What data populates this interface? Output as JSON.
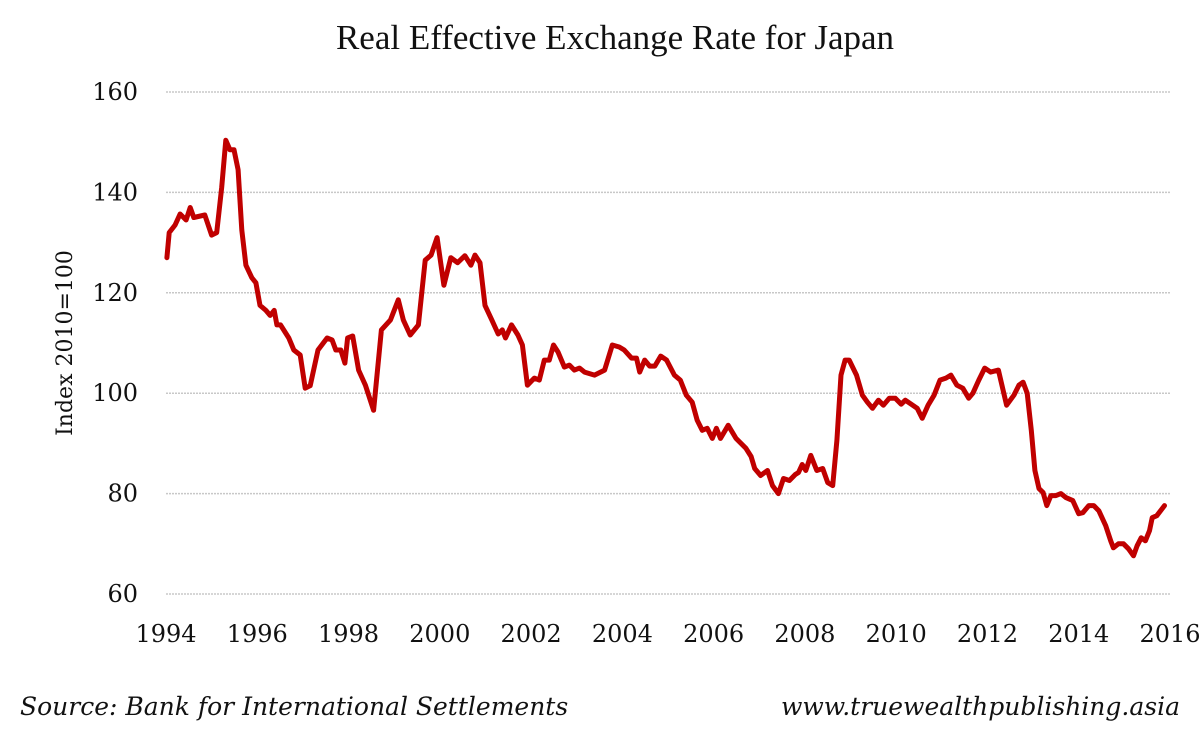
{
  "chart_data": {
    "type": "line",
    "title": "Real Effective Exchange Rate for Japan",
    "xlabel": "",
    "ylabel": "Index 2010=100",
    "xlim": [
      1994,
      2016
    ],
    "ylim": [
      60,
      160
    ],
    "grid": true,
    "yticks": [
      "60",
      "80",
      "100",
      "120",
      "140",
      "160"
    ],
    "ytick_values": [
      60,
      80,
      100,
      120,
      140,
      160
    ],
    "xticks": [
      "1994",
      "1996",
      "1998",
      "2000",
      "2002",
      "2004",
      "2006",
      "2008",
      "2010",
      "2012",
      "2014",
      "2016"
    ],
    "xtick_values": [
      1994,
      1996,
      1998,
      2000,
      2002,
      2004,
      2006,
      2008,
      2010,
      2012,
      2014,
      2016
    ],
    "series": [
      {
        "name": "Real Effective Exchange Rate",
        "color": "#c00000",
        "x": [
          1994.02,
          1994.07,
          1994.2,
          1994.31,
          1994.44,
          1994.53,
          1994.61,
          1994.85,
          1995.0,
          1995.11,
          1995.22,
          1995.31,
          1995.4,
          1995.49,
          1995.58,
          1995.66,
          1995.75,
          1995.88,
          1995.97,
          1996.06,
          1996.19,
          1996.28,
          1996.37,
          1996.43,
          1996.51,
          1996.69,
          1996.8,
          1996.94,
          1997.05,
          1997.16,
          1997.33,
          1997.53,
          1997.64,
          1997.72,
          1997.83,
          1997.92,
          1997.98,
          1998.09,
          1998.22,
          1998.37,
          1998.55,
          1998.72,
          1998.92,
          1999.09,
          1999.2,
          1999.35,
          1999.53,
          1999.68,
          1999.81,
          1999.94,
          2000.09,
          2000.24,
          2000.39,
          2000.55,
          2000.68,
          2000.77,
          2000.88,
          2000.99,
          2001.14,
          2001.28,
          2001.37,
          2001.44,
          2001.57,
          2001.71,
          2001.81,
          2001.92,
          2002.07,
          2002.18,
          2002.29,
          2002.4,
          2002.49,
          2002.59,
          2002.73,
          2002.84,
          2002.95,
          2003.06,
          2003.17,
          2003.39,
          2003.61,
          2003.78,
          2003.93,
          2004.04,
          2004.2,
          2004.31,
          2004.38,
          2004.49,
          2004.6,
          2004.71,
          2004.84,
          2004.97,
          2005.14,
          2005.27,
          2005.4,
          2005.53,
          2005.64,
          2005.75,
          2005.86,
          2005.97,
          2006.06,
          2006.15,
          2006.32,
          2006.49,
          2006.71,
          2006.82,
          2006.9,
          2007.03,
          2007.18,
          2007.29,
          2007.42,
          2007.53,
          2007.66,
          2007.79,
          2007.86,
          2007.94,
          2008.02,
          2008.13,
          2008.26,
          2008.39,
          2008.5,
          2008.61,
          2008.7,
          2008.79,
          2008.88,
          2008.97,
          2009.13,
          2009.26,
          2009.37,
          2009.48,
          2009.61,
          2009.72,
          2009.85,
          2009.98,
          2010.11,
          2010.2,
          2010.33,
          2010.46,
          2010.57,
          2010.7,
          2010.83,
          2010.96,
          2011.09,
          2011.2,
          2011.33,
          2011.46,
          2011.59,
          2011.68,
          2011.81,
          2011.94,
          2012.07,
          2012.24,
          2012.42,
          2012.58,
          2012.69,
          2012.78,
          2012.87,
          2012.96,
          2013.04,
          2013.13,
          2013.22,
          2013.3,
          2013.39,
          2013.5,
          2013.61,
          2013.72,
          2013.87,
          2014.0,
          2014.09,
          2014.22,
          2014.33,
          2014.44,
          2014.59,
          2014.7,
          2014.76,
          2014.87,
          2014.98,
          2015.09,
          2015.2,
          2015.28,
          2015.37,
          2015.46,
          2015.55,
          2015.61,
          2015.71,
          2015.88
        ],
        "values": [
          127,
          132,
          133.5,
          135.7,
          134.5,
          137,
          135,
          135.5,
          131.5,
          132,
          141,
          150.4,
          148.5,
          148.5,
          144.5,
          132.5,
          125.5,
          123,
          122,
          117.5,
          116.5,
          115.5,
          116.5,
          113.6,
          113.6,
          111,
          108.6,
          107.6,
          101,
          101.5,
          108.6,
          111,
          110.6,
          108.6,
          108.6,
          106,
          111,
          111.4,
          104.6,
          101.6,
          96.6,
          112.6,
          114.6,
          118.6,
          114.6,
          111.6,
          113.6,
          126.5,
          127.5,
          131,
          121.5,
          127,
          126,
          127.4,
          125.5,
          127.5,
          126,
          117.5,
          114.6,
          111.8,
          112.6,
          111,
          113.6,
          111.6,
          109.6,
          101.6,
          103,
          102.6,
          106.6,
          106.6,
          109.6,
          108.2,
          105.2,
          105.6,
          104.6,
          105,
          104.2,
          103.6,
          104.6,
          109.6,
          109.2,
          108.6,
          107,
          107,
          104.2,
          106.6,
          105.4,
          105.4,
          107.4,
          106.6,
          103.6,
          102.6,
          99.6,
          98.2,
          94.6,
          92.6,
          93,
          91,
          93,
          91,
          93.6,
          91,
          89,
          87.4,
          85,
          83.6,
          84.6,
          81.6,
          80,
          83,
          82.6,
          83.8,
          84.2,
          85.8,
          84.6,
          87.6,
          84.6,
          85,
          82.2,
          81.6,
          90.6,
          103.6,
          106.6,
          106.6,
          103.6,
          99.6,
          98.2,
          97,
          98.6,
          97.6,
          99,
          99,
          97.8,
          98.6,
          97.8,
          97,
          95,
          97.6,
          99.6,
          102.6,
          103,
          103.6,
          101.6,
          101,
          99,
          100,
          102.6,
          105,
          104.2,
          104.6,
          97.6,
          99.6,
          101.6,
          102.2,
          100,
          92.6,
          84.6,
          81,
          80.2,
          77.6,
          79.6,
          79.6,
          80,
          79.2,
          78.6,
          76,
          76.2,
          77.6,
          77.6,
          76.6,
          73.6,
          70.6,
          69.2,
          70,
          70,
          69,
          67.6,
          69.6,
          71.2,
          70.6,
          72.6,
          75.2,
          75.6,
          77.6
        ]
      }
    ]
  },
  "footer": {
    "source": "Source: Bank for International Settlements",
    "url": "www.truewealthpublishing.asia"
  }
}
